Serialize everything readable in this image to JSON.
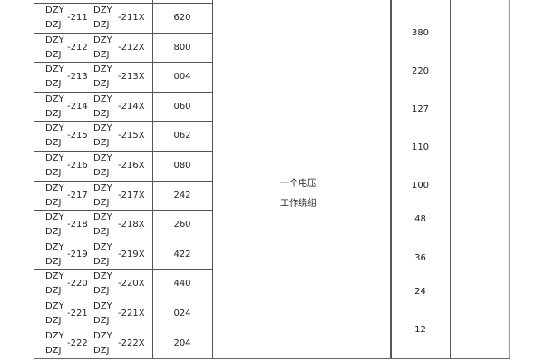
{
  "rows": [
    {
      "prefix_a": "DZY",
      "prefix_b": "DZJ",
      "num": "-211",
      "prefix_c": "DZY",
      "prefix_d": "DZJ",
      "numx": "-211X",
      "code": "620"
    },
    {
      "prefix_a": "DZY",
      "prefix_b": "DZJ",
      "num": "-212",
      "prefix_c": "DZY",
      "prefix_d": "DZJ",
      "numx": "-212X",
      "code": "800"
    },
    {
      "prefix_a": "DZY",
      "prefix_b": "DZJ",
      "num": "-213",
      "prefix_c": "DZY",
      "prefix_d": "DZJ",
      "numx": "-213X",
      "code": "004"
    },
    {
      "prefix_a": "DZY",
      "prefix_b": "DZJ",
      "num": "-214",
      "prefix_c": "DZY",
      "prefix_d": "DZJ",
      "numx": "-214X",
      "code": "060"
    },
    {
      "prefix_a": "DZY",
      "prefix_b": "DZJ",
      "num": "-215",
      "prefix_c": "DZY",
      "prefix_d": "DZJ",
      "numx": "-215X",
      "code": "062"
    },
    {
      "prefix_a": "DZY",
      "prefix_b": "DZJ",
      "num": "-216",
      "prefix_c": "DZY",
      "prefix_d": "DZJ",
      "numx": "-216X",
      "code": "080"
    },
    {
      "prefix_a": "DZY",
      "prefix_b": "DZJ",
      "num": "-217",
      "prefix_c": "DZY",
      "prefix_d": "DZJ",
      "numx": "-217X",
      "code": "242"
    },
    {
      "prefix_a": "DZY",
      "prefix_b": "DZJ",
      "num": "-218",
      "prefix_c": "DZY",
      "prefix_d": "DZJ",
      "numx": "-218X",
      "code": "260"
    },
    {
      "prefix_a": "DZY",
      "prefix_b": "DZJ",
      "num": "-219",
      "prefix_c": "DZY",
      "prefix_d": "DZJ",
      "numx": "-219X",
      "code": "422"
    },
    {
      "prefix_a": "DZY",
      "prefix_b": "DZJ",
      "num": "-220",
      "prefix_c": "DZY",
      "prefix_d": "DZJ",
      "numx": "-220X",
      "code": "440"
    },
    {
      "prefix_a": "DZY",
      "prefix_b": "DZJ",
      "num": "-221",
      "prefix_c": "DZY",
      "prefix_d": "DZJ",
      "numx": "-221X",
      "code": "024"
    },
    {
      "prefix_a": "DZY",
      "prefix_b": "DZJ",
      "num": "-222",
      "prefix_c": "DZY",
      "prefix_d": "DZJ",
      "numx": "-222X",
      "code": "204"
    }
  ],
  "winding": {
    "line1": "一个电压",
    "line2": "工作绕组"
  },
  "voltages": [
    "380",
    "220",
    "127",
    "110",
    "100",
    "48",
    "36",
    "24",
    "12"
  ]
}
